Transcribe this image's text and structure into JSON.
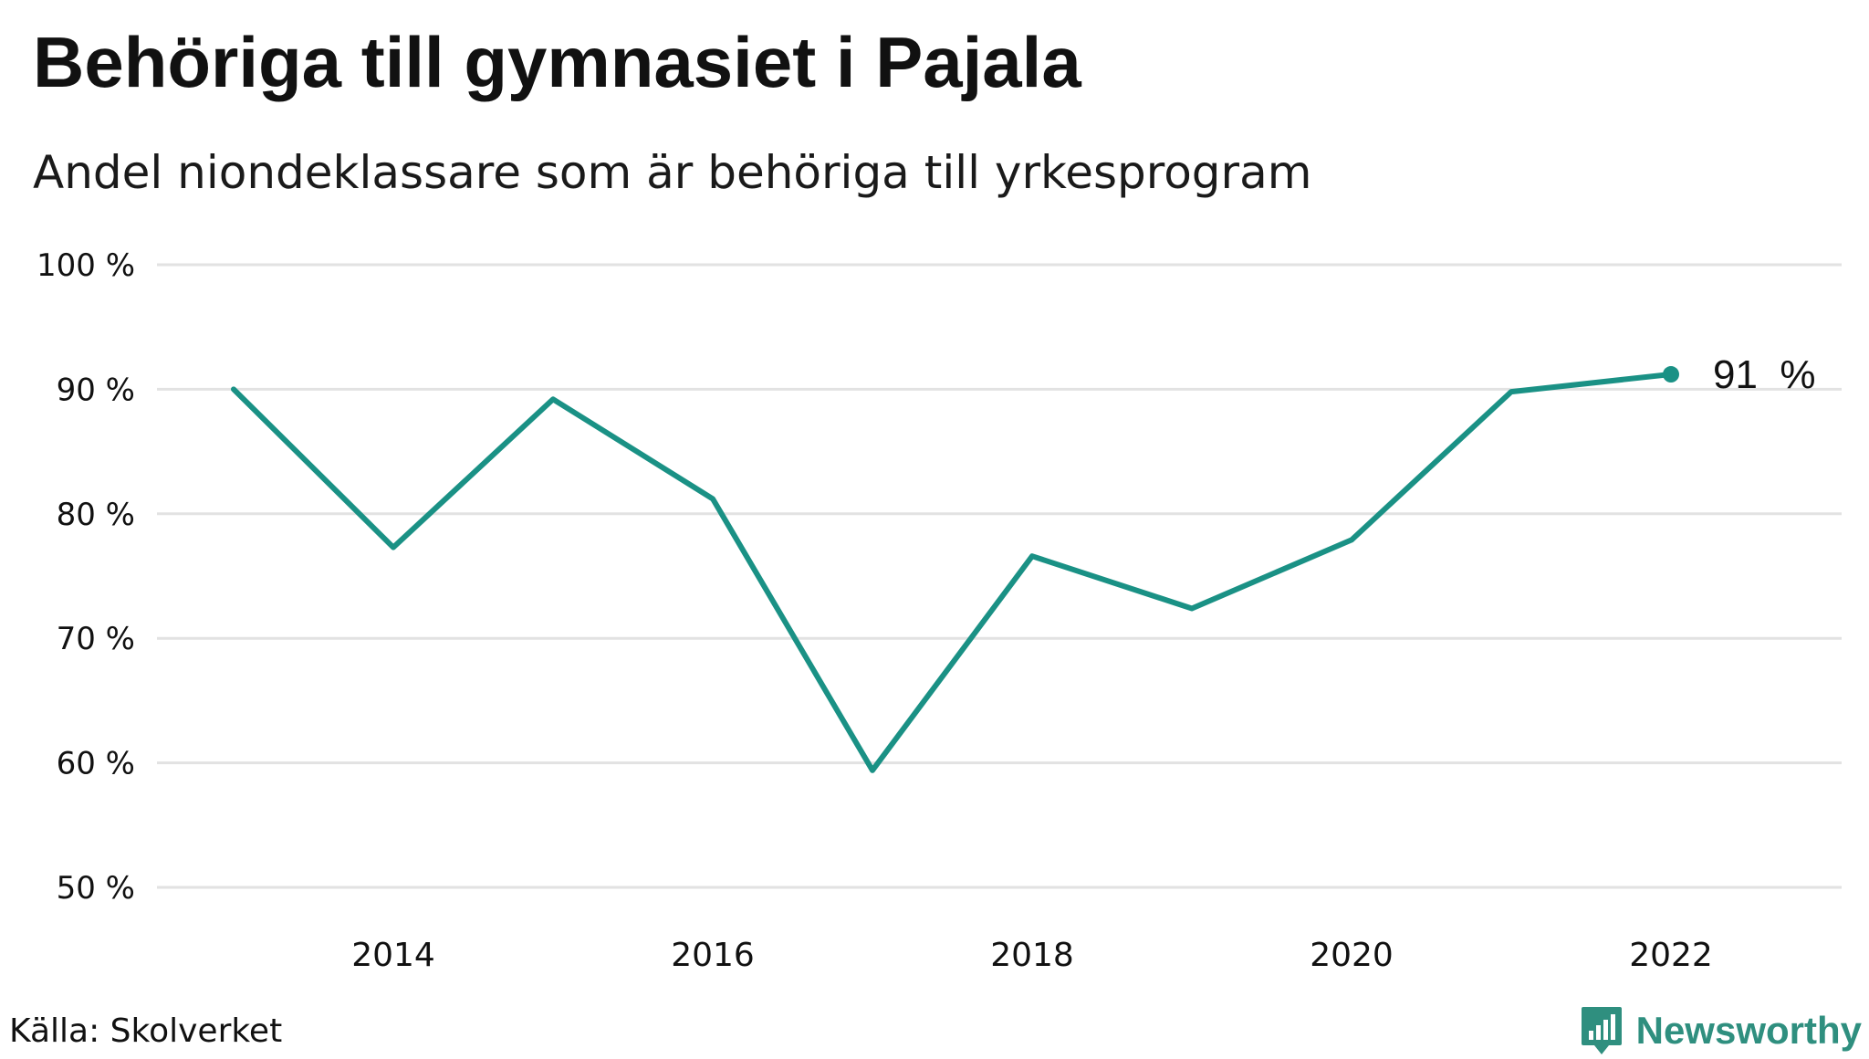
{
  "header": {
    "title": "Behöriga till gymnasiet i Pajala",
    "subtitle": "Andel niondeklassare som är behöriga till yrkesprogram"
  },
  "footer": {
    "source": "Källa: Skolverket",
    "brand": "Newsworthy"
  },
  "colors": {
    "line": "#1a9185",
    "grid": "#e2e2e2",
    "brand": "#2f8f7f"
  },
  "chart_data": {
    "type": "line",
    "x": [
      2013,
      2014,
      2015,
      2016,
      2017,
      2018,
      2019,
      2020,
      2021,
      2022
    ],
    "series": [
      {
        "values": [
          90.0,
          77.3,
          89.2,
          81.2,
          59.4,
          76.6,
          72.4,
          77.9,
          89.8,
          91.2
        ]
      }
    ],
    "ylim": [
      50,
      100
    ],
    "yticks": [
      50,
      60,
      70,
      80,
      90,
      100
    ],
    "ytick_labels": [
      "50 %",
      "60 %",
      "70 %",
      "80 %",
      "90 %",
      "100 %"
    ],
    "xticks": [
      2014,
      2016,
      2018,
      2020,
      2022
    ],
    "xtick_labels": [
      "2014",
      "2016",
      "2018",
      "2020",
      "2022"
    ],
    "last_point_label": "91  %",
    "grid": true,
    "legend": "none"
  }
}
